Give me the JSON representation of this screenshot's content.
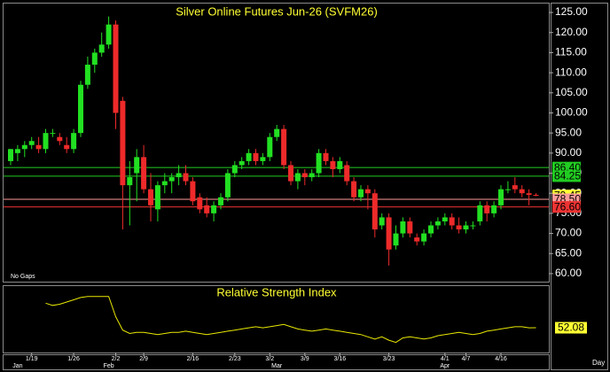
{
  "chart_data": {
    "type": "candlestick",
    "title": "Silver Online Futures Jun-26 (SVFM26)",
    "note": "No Gaps",
    "period": "Day",
    "up_color": "#22e022",
    "down_color": "#ee2a2a",
    "categories": [
      null,
      null,
      null,
      "1/19",
      null,
      null,
      null,
      null,
      null,
      "1/26",
      null,
      null,
      null,
      null,
      null,
      "2/2",
      null,
      null,
      null,
      "2/9",
      null,
      null,
      null,
      null,
      null,
      null,
      "2/16",
      null,
      null,
      null,
      null,
      null,
      "2/23",
      null,
      null,
      null,
      null,
      "3/2",
      null,
      null,
      null,
      null,
      "3/9",
      null,
      null,
      null,
      null,
      "3/16",
      null,
      null,
      null,
      null,
      null,
      null,
      "3/23",
      null,
      null,
      null,
      null,
      null,
      null,
      null,
      "4/1",
      null,
      null,
      "4/7",
      null,
      null,
      null,
      null,
      "4/16",
      null,
      null,
      null,
      null,
      null
    ],
    "month_categories": [
      null,
      "Jan",
      null,
      null,
      null,
      null,
      null,
      null,
      null,
      null,
      null,
      null,
      null,
      null,
      "Feb",
      null,
      null,
      null,
      null,
      null,
      null,
      null,
      null,
      null,
      null,
      null,
      null,
      null,
      null,
      null,
      null,
      null,
      null,
      null,
      null,
      null,
      null,
      null,
      "Mar",
      null,
      null,
      null,
      null,
      null,
      null,
      null,
      null,
      null,
      null,
      null,
      null,
      null,
      null,
      null,
      null,
      null,
      null,
      null,
      null,
      null,
      null,
      null,
      "Apr",
      null,
      null,
      null,
      null,
      null,
      null,
      null,
      null,
      null,
      null,
      null,
      null,
      null
    ],
    "open": [
      88,
      90,
      91,
      92,
      92,
      91,
      95,
      94,
      92,
      91,
      95,
      107,
      112,
      115,
      117,
      122,
      103,
      82,
      85,
      89,
      81,
      76,
      82,
      83,
      84,
      85,
      83,
      79,
      77,
      75,
      77,
      79,
      85,
      87,
      88,
      90,
      88,
      89,
      94,
      96,
      87,
      83,
      85,
      84,
      85,
      90,
      88,
      86,
      87,
      83,
      79,
      81,
      80,
      72,
      74,
      67,
      70,
      73,
      69,
      68,
      70,
      72,
      73,
      74,
      72,
      71,
      72,
      73,
      77,
      75,
      77,
      81,
      82,
      81,
      80,
      79.6
    ],
    "high": [
      91,
      92,
      93,
      94,
      94,
      96,
      96,
      95,
      94,
      96,
      108,
      114,
      116,
      120,
      124,
      123,
      104,
      88,
      91,
      92,
      85,
      83,
      85,
      85,
      87,
      87,
      84,
      80,
      79,
      78,
      80,
      86,
      88,
      89,
      91,
      91,
      90,
      95,
      97,
      97,
      88,
      86,
      86,
      86,
      91,
      91,
      89,
      89,
      88,
      84,
      82,
      82,
      81,
      75,
      75,
      72,
      74,
      74,
      70,
      71,
      73,
      74,
      75,
      75,
      74,
      73,
      73,
      78,
      78,
      78,
      82,
      83,
      84,
      82,
      81,
      80
    ],
    "low": [
      87,
      88,
      89,
      91,
      90,
      90,
      94,
      92,
      90,
      90,
      94,
      106,
      110,
      114,
      116,
      96,
      71,
      72,
      78,
      80,
      73,
      73,
      80,
      80,
      82,
      82,
      77,
      75,
      74,
      73,
      76,
      78,
      84,
      86,
      87,
      87,
      87,
      88,
      93,
      86,
      82,
      81,
      82,
      83,
      84,
      87,
      84,
      85,
      82,
      78,
      78,
      76,
      69,
      71,
      62,
      66,
      69,
      69,
      67,
      67,
      69,
      71,
      72,
      71,
      70,
      70,
      71,
      72,
      73,
      74,
      76,
      80,
      80,
      79,
      77,
      79.3
    ],
    "close": [
      91,
      91,
      92,
      93,
      91,
      95,
      95,
      93,
      91,
      95,
      107,
      112,
      115,
      117,
      122,
      100,
      82,
      84,
      89,
      81,
      77,
      82,
      83,
      84,
      85,
      83,
      78,
      76,
      75,
      77,
      79,
      85,
      87,
      88,
      90,
      88,
      89,
      94,
      96,
      87,
      83,
      85,
      84,
      85,
      90,
      88,
      86,
      88,
      83,
      79,
      81,
      80,
      71,
      74,
      66,
      70,
      73,
      70,
      68,
      70,
      72,
      73,
      74,
      72,
      71,
      72,
      72,
      77,
      75,
      77,
      81,
      81,
      81,
      80,
      79.6,
      79.45
    ],
    "ylim": [
      58,
      127
    ],
    "yticks": [
      {
        "value": 60,
        "label": "60.00"
      },
      {
        "value": 65,
        "label": "65.00"
      },
      {
        "value": 70,
        "label": "70.00"
      },
      {
        "value": 75,
        "label": "75.00"
      },
      {
        "value": 80,
        "label": "80.00"
      },
      {
        "value": 85,
        "label": "85.00"
      },
      {
        "value": 90,
        "label": "90.00"
      },
      {
        "value": 95,
        "label": "95.00"
      },
      {
        "value": 100,
        "label": "100.00"
      },
      {
        "value": 105,
        "label": "105.00"
      },
      {
        "value": 110,
        "label": "110.00"
      },
      {
        "value": 115,
        "label": "115.00"
      },
      {
        "value": 120,
        "label": "120.00"
      },
      {
        "value": 125,
        "label": "125.00"
      }
    ],
    "levels": [
      {
        "value": 86.4,
        "label": "86.40",
        "color": "#22cc22",
        "line": true
      },
      {
        "value": 84.25,
        "label": "84.25",
        "color": "#22cc22",
        "line": true
      },
      {
        "value": 79.45,
        "label": "79.45",
        "color": "#ffff33",
        "line": false
      },
      {
        "value": 78.5,
        "label": "78.50",
        "color": "#ff9a9a",
        "line": true
      },
      {
        "value": 76.6,
        "label": "76.60",
        "color": "#ee3333",
        "line": true
      }
    ],
    "rsi": {
      "title": "Relative Strength Index",
      "color": "#e8e800",
      "label_color": "#ffff33",
      "ylim": [
        30,
        90
      ],
      "values": [
        null,
        null,
        null,
        null,
        null,
        74,
        72,
        73,
        75,
        77,
        79,
        80,
        80,
        80,
        80,
        62,
        50,
        47,
        48,
        48,
        47,
        46,
        47,
        48,
        48,
        49,
        48,
        47,
        46,
        47,
        48,
        49,
        50,
        51,
        52,
        53,
        52,
        53,
        54,
        55,
        53,
        51,
        50,
        49,
        50,
        51,
        50,
        49,
        48,
        47,
        46,
        44,
        42,
        44,
        41,
        39,
        43,
        44,
        43,
        42,
        43,
        45,
        46,
        47,
        48,
        47,
        46,
        47,
        49,
        50,
        51,
        52,
        53,
        53,
        52,
        52.08
      ]
    }
  }
}
